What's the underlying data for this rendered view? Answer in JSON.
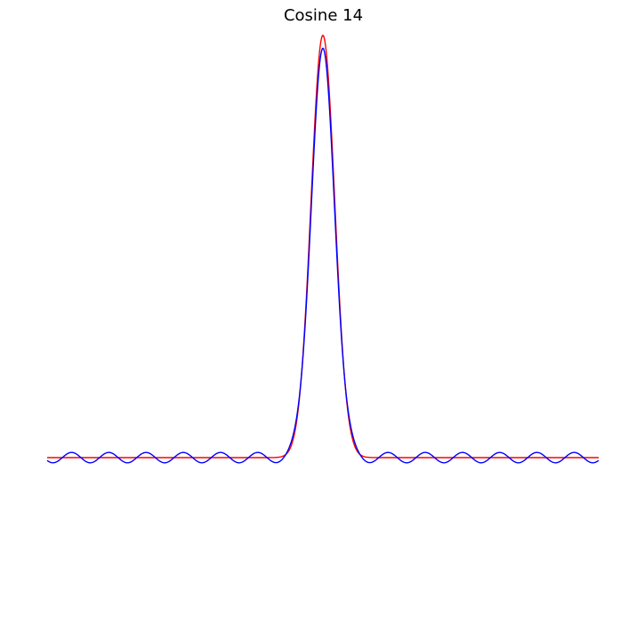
{
  "chart_data": {
    "type": "line",
    "title": "Cosine 14",
    "xlabel": "",
    "ylabel": "",
    "xlim": [
      -1,
      1
    ],
    "ylim": [
      -0.4,
      1.0
    ],
    "axes_visible": false,
    "grid": false,
    "legend": "none",
    "series": [
      {
        "color": "#ff0000",
        "style": "gaussian",
        "peak": 0.98,
        "center": 0,
        "width": 0.043
      },
      {
        "color": "#0000ff",
        "style": "truncated-cosine",
        "peak": 0.95,
        "center": 0,
        "width": 0.043,
        "ripple_amplitude": 0.012,
        "ripple_period": 0.135
      }
    ]
  }
}
